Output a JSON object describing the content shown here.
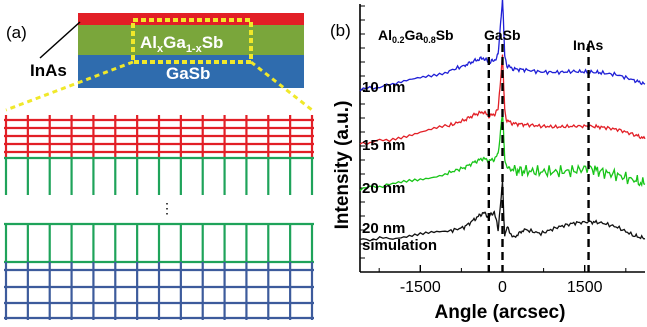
{
  "panel_a": {
    "label": "(a)",
    "layers": [
      {
        "name": "InAs",
        "color": "#e21f26"
      },
      {
        "name_main": "Al",
        "sub1": "x",
        "mid": "Ga",
        "sub2": "1-x",
        "tail": "Sb",
        "color": "#7aa63b"
      },
      {
        "name": "GaSb",
        "color": "#2f6cae"
      }
    ],
    "inas_label": "InAs",
    "dots": "⋮",
    "colors": {
      "red": "#e21f26",
      "green": "#1fa35a",
      "blue": "#3d5b9c",
      "highlight": "#f0e82a"
    }
  },
  "panel_b": {
    "label": "(b)",
    "annot_algasb_main": "Al",
    "annot_algasb_sub1": "0.2",
    "annot_algasb_mid": "Ga",
    "annot_algasb_sub2": "0.8",
    "annot_algasb_tail": "Sb",
    "annot_gasb": "GaSb",
    "annot_inas": "InAs"
  },
  "chart_data": {
    "type": "line",
    "xlabel": "Angle (arcsec)",
    "ylabel": "Intensity (a.u.)",
    "xlim": [
      -2600,
      2600
    ],
    "xticks": [
      -1500,
      0,
      1500
    ],
    "xtick_labels": [
      "-1500",
      "0",
      "1500"
    ],
    "dashed_lines_x": [
      -250,
      0,
      1570
    ],
    "series": [
      {
        "name": "10 nm",
        "color": "#1f1fd6",
        "offset": 3,
        "x": [
          -2600,
          -2000,
          -1500,
          -1000,
          -700,
          -500,
          -350,
          -250,
          -150,
          -80,
          0,
          40,
          80,
          200,
          400,
          700,
          1000,
          1300,
          1570,
          1800,
          2100,
          2400,
          2600
        ],
        "y": [
          0.12,
          0.25,
          0.4,
          0.56,
          0.7,
          0.82,
          0.88,
          0.78,
          0.82,
          0.95,
          2.3,
          0.95,
          0.7,
          0.62,
          0.6,
          0.55,
          0.54,
          0.56,
          0.55,
          0.53,
          0.48,
          0.35,
          0.26
        ]
      },
      {
        "name": "15 nm",
        "color": "#e21f26",
        "offset": 2,
        "x": [
          -2600,
          -2000,
          -1500,
          -1000,
          -700,
          -500,
          -350,
          -250,
          -150,
          -80,
          0,
          40,
          80,
          200,
          400,
          700,
          1000,
          1300,
          1570,
          1800,
          2100,
          2400,
          2600
        ],
        "y": [
          0.1,
          0.22,
          0.38,
          0.52,
          0.66,
          0.8,
          0.86,
          0.76,
          0.8,
          0.92,
          2.2,
          0.9,
          0.65,
          0.58,
          0.56,
          0.52,
          0.5,
          0.52,
          0.52,
          0.5,
          0.44,
          0.32,
          0.22
        ]
      },
      {
        "name": "20 nm",
        "color": "#18c418",
        "offset": 1,
        "x": [
          -2600,
          -2000,
          -1500,
          -1000,
          -700,
          -500,
          -350,
          -250,
          -150,
          -80,
          0,
          40,
          80,
          200,
          400,
          700,
          1000,
          1300,
          1570,
          1800,
          2100,
          2400,
          2600
        ],
        "y": [
          0.08,
          0.18,
          0.3,
          0.45,
          0.58,
          0.72,
          0.8,
          0.74,
          0.78,
          0.9,
          1.9,
          0.82,
          0.58,
          0.52,
          0.5,
          0.48,
          0.48,
          0.5,
          0.58,
          0.48,
          0.4,
          0.28,
          0.18
        ]
      },
      {
        "name": "20 nm simulation",
        "color": "#111111",
        "offset": 0,
        "x": [
          -2600,
          -2000,
          -1500,
          -1000,
          -700,
          -500,
          -350,
          -250,
          -150,
          -80,
          0,
          40,
          80,
          200,
          400,
          700,
          1000,
          1300,
          1570,
          1800,
          2100,
          2400,
          2600
        ],
        "y": [
          0.05,
          0.1,
          0.18,
          0.25,
          0.35,
          0.55,
          0.7,
          0.6,
          0.72,
          0.3,
          1.4,
          0.15,
          0.35,
          0.1,
          0.3,
          0.2,
          0.35,
          0.45,
          0.48,
          0.46,
          0.35,
          0.15,
          0.08
        ]
      }
    ],
    "legend": [
      {
        "line1": "10 nm"
      },
      {
        "line1": "15 nm"
      },
      {
        "line1": "20 nm"
      },
      {
        "line1": "20 nm",
        "line2": "simulation"
      }
    ]
  }
}
